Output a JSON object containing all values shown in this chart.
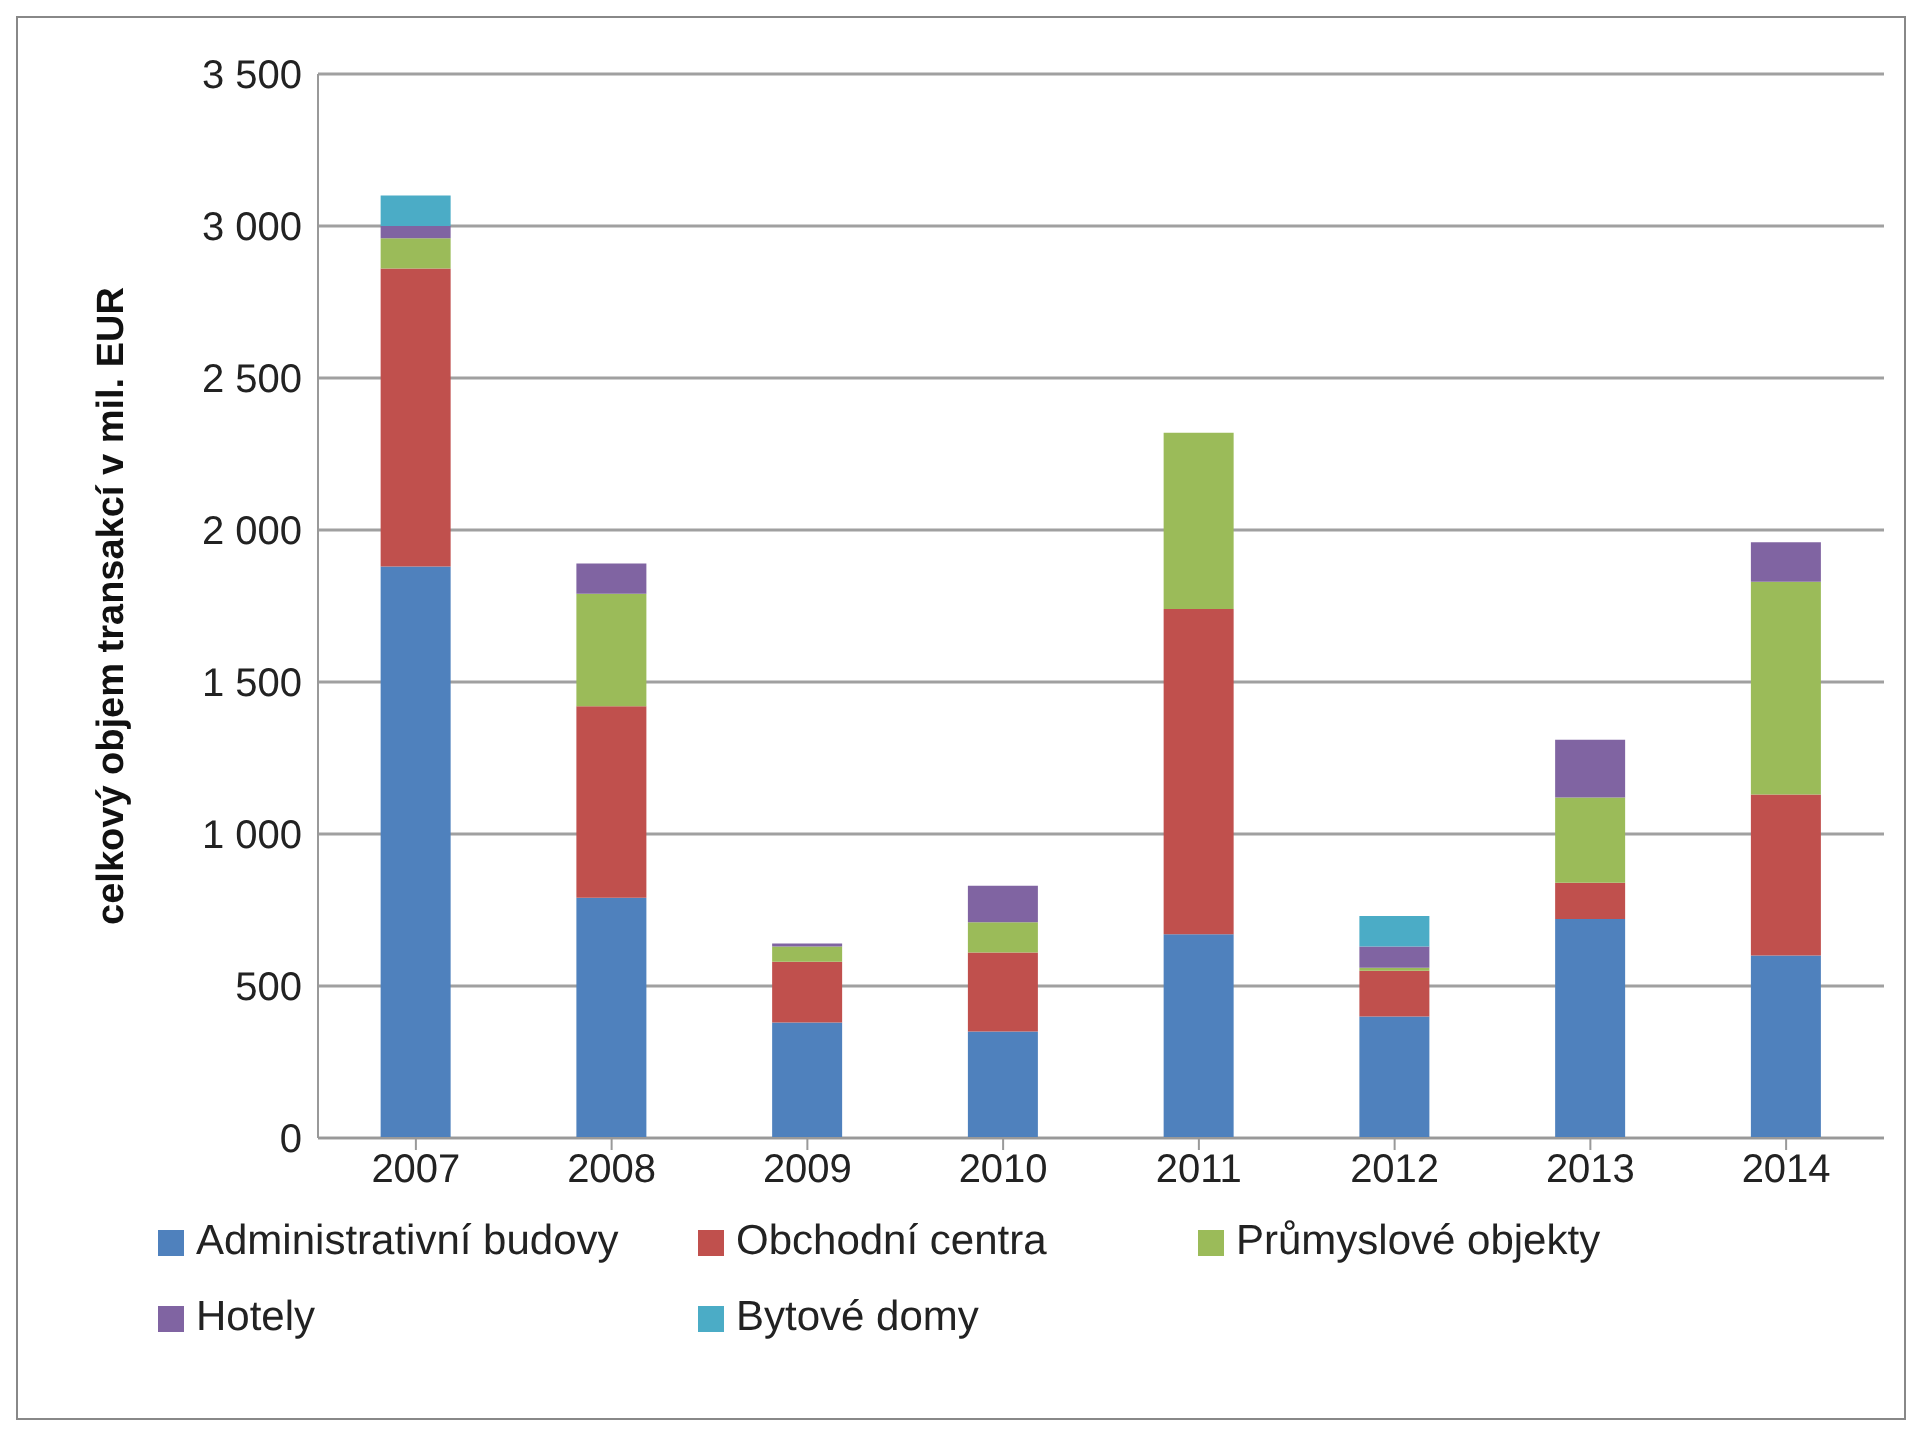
{
  "chart_data": {
    "type": "bar",
    "stacked": true,
    "ylabel": "celkový objem transakcí v mil. EUR",
    "categories": [
      "2007",
      "2008",
      "2009",
      "2010",
      "2011",
      "2012",
      "2013",
      "2014"
    ],
    "series": [
      {
        "name": "Administrativní budovy",
        "color": "#4f81bd",
        "values": [
          1880,
          790,
          380,
          350,
          670,
          400,
          720,
          600
        ]
      },
      {
        "name": "Obchodní centra",
        "color": "#c0504d",
        "values": [
          980,
          630,
          200,
          260,
          1070,
          150,
          120,
          530
        ]
      },
      {
        "name": "Průmyslové objekty",
        "color": "#9bbb59",
        "values": [
          100,
          370,
          50,
          100,
          580,
          10,
          280,
          700
        ]
      },
      {
        "name": "Hotely",
        "color": "#8064a2",
        "values": [
          40,
          100,
          10,
          120,
          null,
          70,
          190,
          130
        ]
      },
      {
        "name": "Bytové domy",
        "color": "#4bacc6",
        "values": [
          100,
          null,
          null,
          null,
          null,
          100,
          null,
          null
        ]
      }
    ],
    "ylim": [
      0,
      3500
    ],
    "yticks": [
      0,
      500,
      {
        "value": 1000,
        "label": "1 000"
      },
      {
        "value": 1500,
        "label": "1 500"
      },
      {
        "value": 2000,
        "label": "2 000"
      },
      {
        "value": 2500,
        "label": "2 500"
      },
      {
        "value": 3000,
        "label": "3 000"
      },
      {
        "value": 3500,
        "label": "3 500"
      }
    ],
    "grid": "y",
    "legend": "bottom"
  }
}
